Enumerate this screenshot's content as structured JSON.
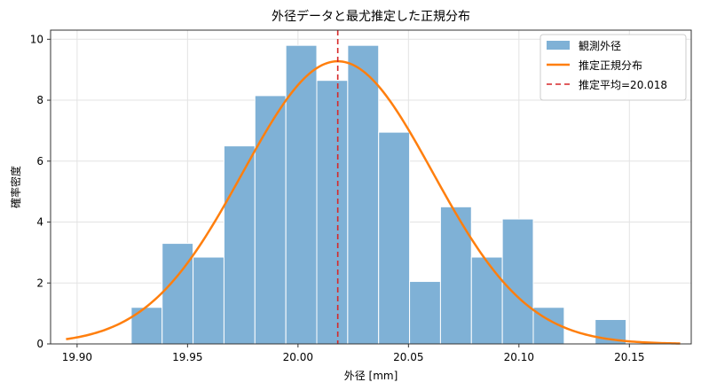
{
  "chart_data": {
    "type": "bar",
    "title": "外径データと最尤推定した正規分布",
    "xlabel": "外径 [mm]",
    "ylabel": "確率密度",
    "xlim": [
      19.888,
      20.178
    ],
    "ylim": [
      0,
      10.3
    ],
    "xticks": [
      "19.90",
      "19.95",
      "20.00",
      "20.05",
      "20.10",
      "20.15"
    ],
    "yticks": [
      "0",
      "2",
      "4",
      "6",
      "8",
      "10"
    ],
    "grid": true,
    "legend_position": "top-right",
    "histogram": {
      "name": "観測外径",
      "color": "#7fb1d6",
      "edge_color": "#ffffff",
      "bins": [
        {
          "x0": 19.9245,
          "x1": 19.9385,
          "density": 1.2
        },
        {
          "x0": 19.9385,
          "x1": 19.9525,
          "density": 3.3
        },
        {
          "x0": 19.9525,
          "x1": 19.9665,
          "density": 2.85
        },
        {
          "x0": 19.9665,
          "x1": 19.9805,
          "density": 6.5
        },
        {
          "x0": 19.9805,
          "x1": 19.9945,
          "density": 8.15
        },
        {
          "x0": 19.9945,
          "x1": 20.0085,
          "density": 9.8
        },
        {
          "x0": 20.0085,
          "x1": 20.0225,
          "density": 8.65
        },
        {
          "x0": 20.0225,
          "x1": 20.0365,
          "density": 9.8
        },
        {
          "x0": 20.0365,
          "x1": 20.0505,
          "density": 6.95
        },
        {
          "x0": 20.0505,
          "x1": 20.0645,
          "density": 2.05
        },
        {
          "x0": 20.0645,
          "x1": 20.0785,
          "density": 4.5
        },
        {
          "x0": 20.0785,
          "x1": 20.0925,
          "density": 2.85
        },
        {
          "x0": 20.0925,
          "x1": 20.1065,
          "density": 4.1
        },
        {
          "x0": 20.1065,
          "x1": 20.1205,
          "density": 1.2
        },
        {
          "x0": 20.1205,
          "x1": 20.1345,
          "density": 0
        },
        {
          "x0": 20.1345,
          "x1": 20.1485,
          "density": 0.8
        }
      ]
    },
    "normal_fit": {
      "name": "推定正規分布",
      "color": "#ff7f0e",
      "mean": 20.018,
      "sd": 0.043,
      "x_range": [
        19.895,
        20.173
      ]
    },
    "mean_line": {
      "name": "推定平均=20.018",
      "value": 20.018,
      "color": "#d62728"
    }
  }
}
